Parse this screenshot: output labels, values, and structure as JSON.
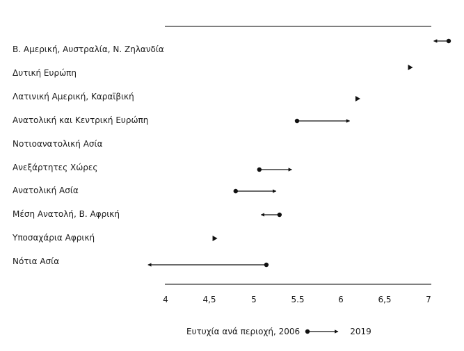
{
  "chart_data": {
    "type": "dumbbell-arrow",
    "title": "",
    "xlabel": "",
    "ylabel": "",
    "xlim": [
      4,
      7
    ],
    "grid": false,
    "x_ticks": [
      "4",
      "4,5",
      "5",
      "5.5",
      "6",
      "6,5",
      "7"
    ],
    "x_tick_values": [
      4,
      4.5,
      5,
      5.5,
      6,
      6.5,
      7
    ],
    "categories": [
      "Β. Αμερική, Αυστραλία, Ν. Ζηλανδία",
      "Δυτική Ευρώπη",
      "Λατινική Αμερική, Καραϊβική",
      "Ανατολική και Κεντρική Ευρώπη",
      "Νοτιοανατολική Ασία",
      "Ανεξάρτητες Χώρες",
      "Ανατολική Ασία",
      "Μέση Ανατολή, Β. Αφρική",
      "Υποσαχάρια Αφρική",
      "Νότια Ασία"
    ],
    "series": [
      {
        "name": "2006",
        "values": [
          7.23,
          6.76,
          6.16,
          5.5,
          null,
          5.07,
          4.8,
          5.3,
          4.53,
          5.15
        ]
      },
      {
        "name": "2019",
        "values": [
          7.06,
          6.79,
          6.19,
          6.1,
          null,
          5.44,
          5.26,
          5.09,
          4.56,
          3.8
        ]
      }
    ],
    "legend": {
      "label": "Ευτυχία ανά περιοχή, 2006",
      "end_label": "2019",
      "position": "bottom"
    }
  },
  "axis": {
    "ticks": [
      "4",
      "4,5",
      "5",
      "5.5",
      "6",
      "6,5",
      "7"
    ]
  },
  "legend": {
    "start": "Ευτυχία ανά περιοχή, 2006",
    "end": "2019"
  },
  "labels": [
    "Β. Αμερική, Αυστραλία, Ν. Ζηλανδία",
    "Δυτική Ευρώπη",
    "Λατινική Αμερική, Καραϊβική",
    "Ανατολική και Κεντρική Ευρώπη",
    "Νοτιοανατολική Ασία",
    "Ανεξάρτητες Χώρες",
    "Ανατολική Ασία",
    "Μέση Ανατολή, Β. Αφρική",
    "Υποσαχάρια Αφρική",
    "Νότια Ασία"
  ]
}
